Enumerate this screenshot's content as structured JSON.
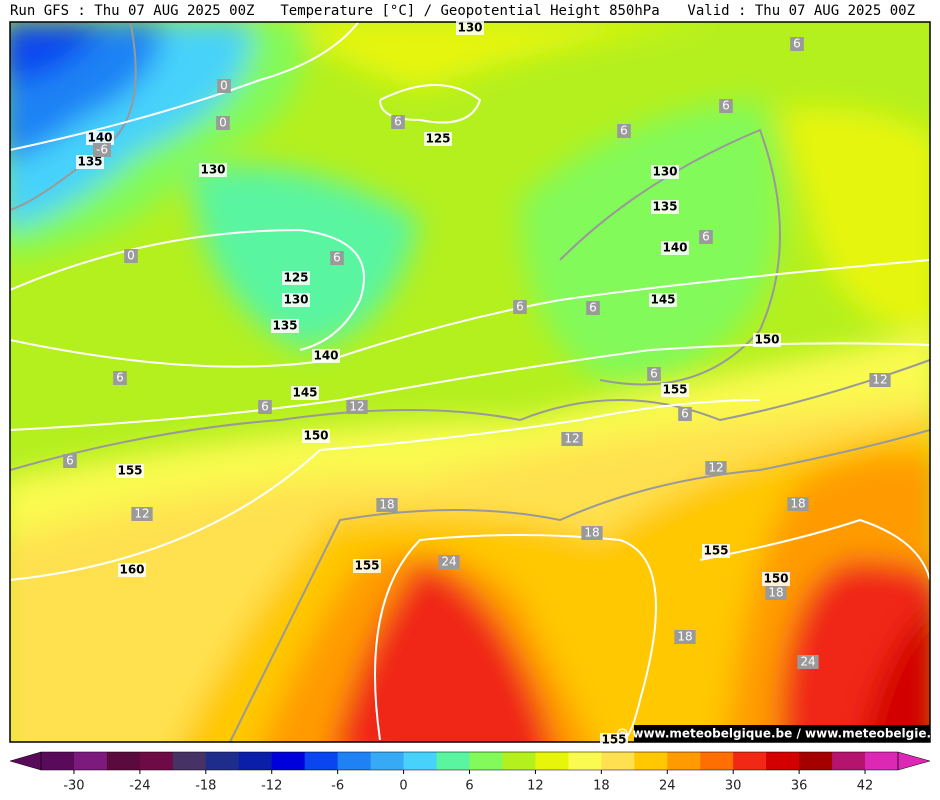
{
  "header": {
    "left": "Run GFS : Thu 07 AUG 2025 00Z",
    "center": "Temperature [°C] / Geopotential Height 850hPa",
    "right": "Valid : Thu 07 AUG 2025 00Z"
  },
  "contour_labels": {
    "height": [
      130,
      140,
      135,
      130,
      125,
      130,
      135,
      140,
      125,
      130,
      135,
      145,
      140,
      150,
      145,
      155,
      150,
      155,
      160,
      155,
      155,
      150,
      155
    ],
    "temperature": [
      -6,
      0,
      0,
      0,
      6,
      6,
      6,
      6,
      6,
      6,
      6,
      6,
      6,
      6,
      6,
      6,
      6,
      12,
      12,
      12,
      12,
      12,
      18,
      18,
      18,
      18,
      18,
      24,
      24
    ]
  },
  "watermark": "@ www.meteobelgique.be / www.meteobelgie.be",
  "colorbar": {
    "bounds": [
      -33,
      45
    ],
    "ticks": [
      -30,
      -24,
      -18,
      -12,
      -6,
      0,
      6,
      12,
      18,
      24,
      30,
      36,
      42
    ],
    "colors": [
      "#5a0a5a",
      "#7d1a7d",
      "#5a0a3c",
      "#6e0a46",
      "#463264",
      "#1e2d8c",
      "#0a1eaa",
      "#0000dc",
      "#0a46f0",
      "#1e82f5",
      "#37aaf5",
      "#46d2fa",
      "#5af5a0",
      "#82fa5a",
      "#b4f01e",
      "#e6f50a",
      "#fafa50",
      "#ffe150",
      "#ffc800",
      "#ff9b00",
      "#ff6e00",
      "#f02814",
      "#d20000",
      "#a50000",
      "#b4146e",
      "#dc28b4"
    ]
  }
}
